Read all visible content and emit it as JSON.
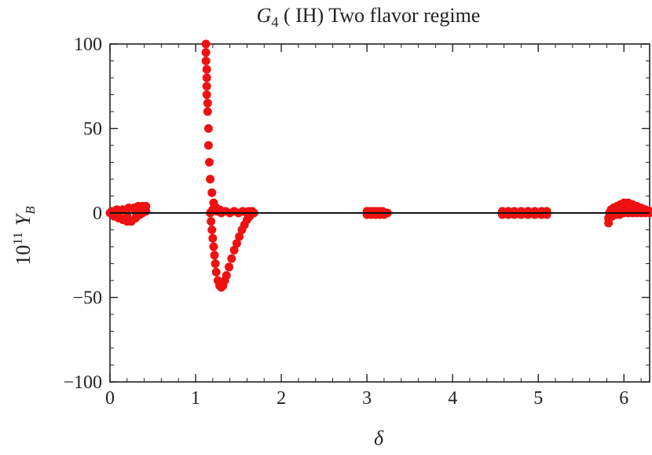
{
  "chart_data": {
    "type": "scatter",
    "title_parts": {
      "symbol": "G",
      "subscript": "4",
      "rest": " ( IH)  Two  flavor  regime"
    },
    "xlabel": "δ",
    "ylabel_parts": {
      "base": "10",
      "exponent": "11",
      "symbol": "Y",
      "subscript": "B"
    },
    "xlim": [
      0,
      6.3
    ],
    "ylim": [
      -100,
      100
    ],
    "xticks": [
      {
        "value": 0,
        "label": "0"
      },
      {
        "value": 1,
        "label": "1"
      },
      {
        "value": 2,
        "label": "2"
      },
      {
        "value": 3,
        "label": "3"
      },
      {
        "value": 4,
        "label": "4"
      },
      {
        "value": 5,
        "label": "5"
      },
      {
        "value": 6,
        "label": "6"
      }
    ],
    "yticks": [
      {
        "value": 100,
        "label": "100"
      },
      {
        "value": 50,
        "label": "50"
      },
      {
        "value": 0,
        "label": "0"
      },
      {
        "value": -50,
        "label": "−50"
      },
      {
        "value": -100,
        "label": "−100"
      }
    ],
    "grid": false,
    "zero_line": true,
    "series_color": "#ee1111",
    "series": [
      {
        "points": [
          [
            0.0,
            0
          ],
          [
            0.05,
            -2
          ],
          [
            0.1,
            -3
          ],
          [
            0.15,
            -4
          ],
          [
            0.2,
            -5
          ],
          [
            0.25,
            -5
          ],
          [
            0.3,
            -3
          ],
          [
            0.35,
            -1
          ],
          [
            0.38,
            0
          ],
          [
            0.02,
            1
          ],
          [
            0.08,
            2
          ],
          [
            0.15,
            2
          ],
          [
            0.22,
            3
          ],
          [
            0.28,
            3
          ],
          [
            0.33,
            4
          ],
          [
            0.38,
            4
          ],
          [
            0.42,
            4
          ],
          [
            0.42,
            1
          ],
          [
            0.1,
            -1
          ],
          [
            0.2,
            -2
          ],
          [
            0.3,
            1
          ],
          [
            0.36,
            2
          ]
        ]
      },
      {
        "points": [
          [
            1.12,
            100
          ],
          [
            1.12,
            95
          ],
          [
            1.12,
            90
          ],
          [
            1.13,
            85
          ],
          [
            1.13,
            80
          ],
          [
            1.13,
            75
          ],
          [
            1.13,
            70
          ],
          [
            1.14,
            65
          ],
          [
            1.14,
            60
          ],
          [
            1.15,
            50
          ],
          [
            1.15,
            40
          ],
          [
            1.16,
            30
          ],
          [
            1.17,
            20
          ],
          [
            1.19,
            12
          ],
          [
            1.21,
            6
          ],
          [
            1.24,
            3
          ],
          [
            1.28,
            2
          ],
          [
            1.35,
            1
          ],
          [
            1.45,
            1
          ],
          [
            1.55,
            1
          ],
          [
            1.62,
            1
          ],
          [
            1.66,
            1
          ],
          [
            1.17,
            0
          ],
          [
            1.18,
            -5
          ],
          [
            1.19,
            -10
          ],
          [
            1.2,
            -15
          ],
          [
            1.21,
            -20
          ],
          [
            1.22,
            -25
          ],
          [
            1.23,
            -30
          ],
          [
            1.24,
            -35
          ],
          [
            1.26,
            -40
          ],
          [
            1.28,
            -43
          ],
          [
            1.3,
            -44
          ],
          [
            1.32,
            -43
          ],
          [
            1.34,
            -40
          ],
          [
            1.36,
            -37
          ],
          [
            1.39,
            -32
          ],
          [
            1.42,
            -27
          ],
          [
            1.45,
            -22
          ],
          [
            1.48,
            -18
          ],
          [
            1.51,
            -14
          ],
          [
            1.54,
            -10
          ],
          [
            1.57,
            -7
          ],
          [
            1.6,
            -4
          ],
          [
            1.63,
            -2
          ],
          [
            1.66,
            0
          ],
          [
            1.2,
            2
          ],
          [
            1.25,
            1
          ],
          [
            1.3,
            0
          ],
          [
            1.4,
            0
          ],
          [
            1.5,
            0
          ],
          [
            1.6,
            0
          ],
          [
            1.68,
            0
          ]
        ]
      },
      {
        "points": [
          [
            3.0,
            1
          ],
          [
            3.03,
            1
          ],
          [
            3.06,
            1
          ],
          [
            3.1,
            1
          ],
          [
            3.14,
            1
          ],
          [
            3.18,
            1
          ],
          [
            3.22,
            0
          ],
          [
            3.0,
            -1
          ],
          [
            3.05,
            -1
          ],
          [
            3.1,
            -1
          ],
          [
            3.15,
            -1
          ],
          [
            3.2,
            -1
          ],
          [
            3.24,
            0
          ]
        ]
      },
      {
        "points": [
          [
            4.58,
            1
          ],
          [
            4.65,
            1
          ],
          [
            4.72,
            1
          ],
          [
            4.8,
            1
          ],
          [
            4.88,
            1
          ],
          [
            4.96,
            1
          ],
          [
            5.04,
            1
          ],
          [
            5.1,
            1
          ],
          [
            4.58,
            -1
          ],
          [
            4.65,
            -1
          ],
          [
            4.72,
            -1
          ],
          [
            4.8,
            -1
          ],
          [
            4.88,
            -1
          ],
          [
            4.96,
            -1
          ],
          [
            5.04,
            -1
          ],
          [
            5.1,
            -1
          ]
        ]
      },
      {
        "points": [
          [
            5.82,
            -6
          ],
          [
            5.82,
            -3
          ],
          [
            5.83,
            0
          ],
          [
            5.85,
            2
          ],
          [
            5.88,
            3
          ],
          [
            5.92,
            4
          ],
          [
            5.96,
            5
          ],
          [
            6.0,
            6
          ],
          [
            6.05,
            6
          ],
          [
            6.1,
            5
          ],
          [
            6.15,
            4
          ],
          [
            6.2,
            3
          ],
          [
            6.25,
            2
          ],
          [
            6.3,
            1
          ],
          [
            6.3,
            0
          ],
          [
            5.86,
            -2
          ],
          [
            5.9,
            -1
          ],
          [
            5.95,
            -1
          ],
          [
            6.0,
            0
          ],
          [
            6.05,
            0
          ],
          [
            6.1,
            0
          ],
          [
            6.15,
            0
          ],
          [
            6.2,
            0
          ],
          [
            6.25,
            0
          ],
          [
            5.9,
            1
          ],
          [
            5.98,
            3
          ],
          [
            6.06,
            3
          ],
          [
            6.14,
            2
          ],
          [
            6.22,
            1
          ]
        ]
      }
    ]
  }
}
